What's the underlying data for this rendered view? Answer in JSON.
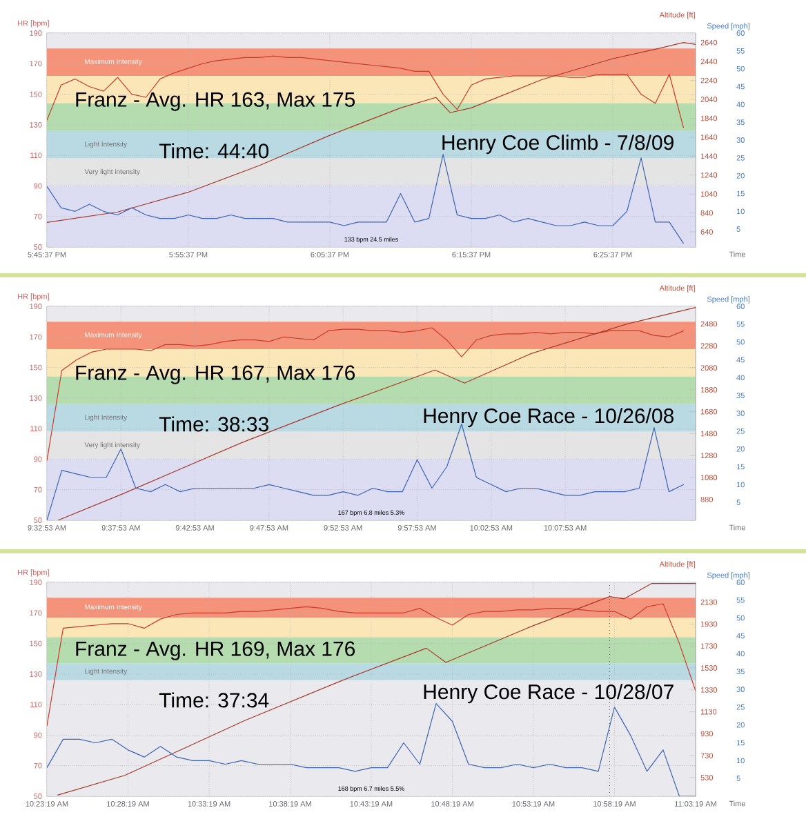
{
  "chart_data": [
    {
      "type": "line",
      "xlabel": "Time",
      "ylabel": "HR [bpm]",
      "y2label": "Altitude [ft]",
      "y3label": "Speed [mph]",
      "x": [
        17.7603,
        17.777,
        17.7936,
        17.8103,
        17.827,
        17.8436,
        17.8603,
        17.877,
        17.8936,
        17.9103,
        17.927,
        17.9436,
        17.9603,
        17.977,
        17.9936,
        18.0103,
        18.027,
        18.0436,
        18.0603,
        18.077,
        18.0936,
        18.1103,
        18.127,
        18.1436,
        18.1603,
        18.177,
        18.1936,
        18.2103,
        18.227,
        18.2436,
        18.2603,
        18.277,
        18.2936,
        18.3103,
        18.327,
        18.3436,
        18.3603,
        18.377,
        18.3936,
        18.4103,
        18.427,
        18.4436,
        18.4603,
        18.477,
        18.4936,
        18.5103
      ],
      "xlim": [
        17.7603,
        18.5245
      ],
      "xticks": [
        {
          "value": 17.7603,
          "label": "5:45:37 PM"
        },
        {
          "value": 17.9269,
          "label": "5:55:37 PM"
        },
        {
          "value": 18.0936,
          "label": "6:05:37 PM"
        },
        {
          "value": 18.2603,
          "label": "6:15:37 PM"
        },
        {
          "value": 18.4269,
          "label": "6:25:37 PM"
        }
      ],
      "ylim": [
        50,
        190
      ],
      "yticks": [
        50,
        70,
        90,
        110,
        130,
        150,
        170,
        190
      ],
      "y2lim": [
        480,
        2740
      ],
      "y2ticks": [
        640,
        840,
        1040,
        1240,
        1440,
        1640,
        1840,
        2040,
        2240,
        2440,
        2640
      ],
      "y3lim": [
        0,
        60
      ],
      "y3ticks": [
        5,
        10,
        15,
        20,
        25,
        30,
        35,
        40,
        45,
        50,
        55,
        60
      ],
      "grid": true,
      "line_style": "solid",
      "series": [
        {
          "color": "#c83c2c",
          "values": [
            133,
            156,
            160,
            155,
            152,
            161,
            150,
            148,
            160,
            164,
            167,
            170,
            172,
            173,
            174,
            174,
            175,
            174,
            174,
            173,
            172,
            171,
            170,
            169,
            168,
            167,
            165,
            165,
            150,
            140,
            156,
            160,
            161,
            162,
            162,
            162,
            162,
            161,
            161,
            163,
            163,
            163,
            150,
            144,
            163,
            128
          ]
        },
        {
          "axis": "y2",
          "color": "#a8382a",
          "x": [
            17.7603,
            17.8436,
            17.927,
            18.0103,
            18.0936,
            18.177,
            18.2186,
            18.2353,
            18.2603,
            18.3436,
            18.427,
            18.477,
            18.5103,
            18.5245
          ],
          "values": [
            740,
            850,
            1060,
            1340,
            1660,
            1950,
            2060,
            1900,
            1950,
            2250,
            2470,
            2570,
            2640,
            2620
          ]
        },
        {
          "axis": "y3",
          "color": "#3c64b4",
          "values": [
            17,
            11,
            10,
            12,
            10,
            9,
            11,
            9,
            8,
            8,
            9,
            8,
            8,
            9,
            8,
            8,
            8,
            7,
            7,
            7,
            7,
            6,
            7,
            7,
            7,
            15,
            7,
            8,
            26,
            9,
            8,
            8,
            9,
            7,
            8,
            7,
            6,
            6,
            7,
            6,
            6,
            10,
            25,
            7,
            7,
            1
          ]
        }
      ],
      "bands": [
        {
          "axis": "y",
          "from": 162,
          "to": 180,
          "color": "#f5937a",
          "label": "Maximum Intensity"
        },
        {
          "axis": "y",
          "from": 144,
          "to": 162,
          "color": "#fbe6b8"
        },
        {
          "axis": "y",
          "from": 126,
          "to": 144,
          "color": "#b5dcaf"
        },
        {
          "axis": "y",
          "from": 108,
          "to": 126,
          "color": "#b9d9e3",
          "label": "Light Intensity"
        },
        {
          "axis": "y",
          "from": 90,
          "to": 108,
          "color": "#e4e4e4",
          "label": "Very light intensity"
        },
        {
          "axis": "y",
          "from": 50,
          "to": 90,
          "color": "#dcdcf2"
        }
      ],
      "annotations": [
        "Franz - Avg. HR 163, Max 175",
        "Time: 44:40",
        "Henry Coe Climb - 7/8/09",
        "133 bpm 24.5 miles"
      ]
    },
    {
      "type": "line",
      "xlabel": "Time",
      "ylabel": "HR [bpm]",
      "y2label": "Altitude [ft]",
      "y3label": "Speed [mph]",
      "x": [
        9.5481,
        9.5648,
        9.5814,
        9.5981,
        9.6148,
        9.6314,
        9.6481,
        9.6648,
        9.6814,
        9.6981,
        9.7148,
        9.7314,
        9.7481,
        9.7648,
        9.7814,
        9.7981,
        9.8148,
        9.8314,
        9.8481,
        9.8648,
        9.8814,
        9.8981,
        9.9148,
        9.9314,
        9.9481,
        9.9648,
        9.9814,
        9.9981,
        10.0148,
        10.0314,
        10.0481,
        10.0648,
        10.0814,
        10.0981,
        10.1148,
        10.1314,
        10.1481,
        10.1648,
        10.1814,
        10.1981,
        10.2148,
        10.2314,
        10.2481,
        10.2648
      ],
      "xlim": [
        9.5481,
        10.2781
      ],
      "xticks": [
        {
          "value": 9.5481,
          "label": "9:32:53 AM"
        },
        {
          "value": 9.6314,
          "label": "9:37:53 AM"
        },
        {
          "value": 9.7147,
          "label": "9:42:53 AM"
        },
        {
          "value": 9.7981,
          "label": "9:47:53 AM"
        },
        {
          "value": 9.8814,
          "label": "9:52:53 AM"
        },
        {
          "value": 9.9647,
          "label": "9:57:53 AM"
        },
        {
          "value": 10.0481,
          "label": "10:02:53 AM"
        },
        {
          "value": 10.1314,
          "label": "10:07:53 AM"
        }
      ],
      "ylim": [
        50,
        190
      ],
      "yticks": [
        50,
        70,
        90,
        110,
        130,
        150,
        170,
        190
      ],
      "y2lim": [
        690,
        2640
      ],
      "y2ticks": [
        880,
        1080,
        1280,
        1480,
        1680,
        1880,
        2080,
        2280,
        2480
      ],
      "y3lim": [
        0,
        60
      ],
      "y3ticks": [
        5,
        10,
        15,
        20,
        25,
        30,
        35,
        40,
        45,
        50,
        55,
        60
      ],
      "grid": true,
      "line_style": "solid",
      "series": [
        {
          "color": "#c83c2c",
          "values": [
            89,
            148,
            155,
            160,
            162,
            162,
            162,
            161,
            165,
            165,
            164,
            165,
            167,
            168,
            168,
            167,
            170,
            169,
            168,
            174,
            175,
            175,
            174,
            174,
            173,
            174,
            176,
            168,
            157,
            168,
            171,
            172,
            172,
            173,
            172,
            173,
            173,
            172,
            174,
            174,
            174,
            171,
            170,
            174
          ]
        },
        {
          "axis": "y2",
          "color": "#a8382a",
          "x": [
            9.5606,
            9.6331,
            9.7681,
            9.8764,
            9.9848,
            10.0181,
            10.0931,
            10.2014,
            10.2781
          ],
          "values": [
            690,
            930,
            1400,
            1740,
            2060,
            1940,
            2210,
            2480,
            2630
          ]
        },
        {
          "axis": "y3",
          "color": "#3c64b4",
          "values": [
            0,
            14,
            13,
            12,
            12,
            20,
            9,
            8,
            10,
            8,
            9,
            9,
            9,
            9,
            9,
            10,
            9,
            8,
            7,
            7,
            8,
            7,
            9,
            8,
            8,
            17,
            9,
            15,
            27,
            12,
            10,
            8,
            9,
            9,
            8,
            7,
            7,
            8,
            8,
            8,
            9,
            26,
            8,
            10
          ]
        }
      ],
      "bands": [
        {
          "axis": "y",
          "from": 162,
          "to": 180,
          "color": "#f5937a",
          "label": "Maximum Intensity"
        },
        {
          "axis": "y",
          "from": 144,
          "to": 162,
          "color": "#fbe6b8"
        },
        {
          "axis": "y",
          "from": 126,
          "to": 144,
          "color": "#b5dcaf"
        },
        {
          "axis": "y",
          "from": 108,
          "to": 126,
          "color": "#b9d9e3",
          "label": "Light Intensity"
        },
        {
          "axis": "y",
          "from": 90,
          "to": 108,
          "color": "#e4e4e4",
          "label": "Very light intensity"
        },
        {
          "axis": "y",
          "from": 50,
          "to": 90,
          "color": "#dcdcf2"
        }
      ],
      "annotations": [
        "Franz - Avg. HR 167, Max 176",
        "Time: 38:33",
        "Henry Coe Race - 10/26/08",
        "167 bpm 6.8 miles 5.3%"
      ]
    },
    {
      "type": "line",
      "xlabel": "Time",
      "ylabel": "HR [bpm]",
      "y2label": "Altitude [ft]",
      "y3label": "Speed [mph]",
      "x": [
        10.3886,
        10.4053,
        10.4219,
        10.4386,
        10.4553,
        10.4719,
        10.4886,
        10.5053,
        10.5219,
        10.5386,
        10.5553,
        10.5719,
        10.5886,
        10.6053,
        10.6219,
        10.6386,
        10.6553,
        10.6719,
        10.6886,
        10.7053,
        10.7219,
        10.7386,
        10.7553,
        10.7719,
        10.7886,
        10.8053,
        10.8219,
        10.8386,
        10.8553,
        10.8719,
        10.8886,
        10.9053,
        10.9219,
        10.9386,
        10.9553,
        10.9719,
        10.9886,
        11.0053,
        11.0219,
        11.0386,
        11.0553
      ],
      "xlim": [
        10.3886,
        11.0553
      ],
      "xticks": [
        {
          "value": 10.3886,
          "label": "10:23:19 AM"
        },
        {
          "value": 10.4719,
          "label": "10:28:19 AM"
        },
        {
          "value": 10.5553,
          "label": "10:33:19 AM"
        },
        {
          "value": 10.6386,
          "label": "10:38:19 AM"
        },
        {
          "value": 10.7219,
          "label": "10:43:19 AM"
        },
        {
          "value": 10.8053,
          "label": "10:48:19 AM"
        },
        {
          "value": 10.8886,
          "label": "10:53:19 AM"
        },
        {
          "value": 10.9719,
          "label": "10:58:19 AM"
        },
        {
          "value": 11.0553,
          "label": "11:03:19 AM"
        }
      ],
      "ylim": [
        50,
        190
      ],
      "yticks": [
        50,
        70,
        90,
        110,
        130,
        150,
        170,
        190
      ],
      "y2lim": [
        360,
        2310
      ],
      "y2ticks": [
        530,
        730,
        930,
        1130,
        1330,
        1530,
        1730,
        1930,
        2130
      ],
      "y3lim": [
        0,
        60
      ],
      "y3ticks": [
        5,
        10,
        15,
        20,
        25,
        30,
        35,
        40,
        45,
        50,
        55,
        60
      ],
      "grid": true,
      "line_style": "solid",
      "series": [
        {
          "color": "#c83c2c",
          "values": [
            96,
            160,
            161,
            162,
            163,
            163,
            160,
            166,
            169,
            170,
            170,
            170,
            171,
            171,
            172,
            173,
            174,
            173,
            171,
            170,
            170,
            170,
            170,
            173,
            167,
            162,
            169,
            171,
            171,
            172,
            172,
            173,
            173,
            172,
            171,
            171,
            166,
            174,
            176,
            150,
            119
          ]
        },
        {
          "axis": "y2",
          "color": "#a8382a",
          "x": [
            10.3994,
            10.4686,
            10.5919,
            10.6903,
            10.7786,
            10.7986,
            10.8869,
            10.9669,
            10.9819,
            11.0103,
            11.0553
          ],
          "values": [
            370,
            550,
            1050,
            1410,
            1710,
            1580,
            1910,
            2180,
            2160,
            2300,
            2300
          ]
        },
        {
          "axis": "y3",
          "color": "#3c64b4",
          "values": [
            8,
            16,
            16,
            15,
            16,
            13,
            11,
            14,
            11,
            10,
            10,
            9,
            10,
            9,
            9,
            9,
            8,
            8,
            8,
            7,
            8,
            8,
            15,
            9,
            26,
            21,
            9,
            8,
            8,
            9,
            8,
            9,
            8,
            8,
            7,
            25,
            17,
            7,
            13,
            0,
            0
          ]
        }
      ],
      "bands": [
        {
          "axis": "y",
          "from": 167,
          "to": 180,
          "color": "#f5937a",
          "label": "Maximum Intensity"
        },
        {
          "axis": "y",
          "from": 154,
          "to": 167,
          "color": "#fbe6b8"
        },
        {
          "axis": "y",
          "from": 137,
          "to": 154,
          "color": "#b5dcaf"
        },
        {
          "axis": "y",
          "from": 126,
          "to": 137,
          "color": "#b9d9e3",
          "label": "Light Intensity"
        }
      ],
      "ref_lines": [
        {
          "axis": "x",
          "value": 10.9669,
          "line_style": "dotted"
        }
      ],
      "annotations": [
        "Franz - Avg. HR 169, Max 176",
        "Time: 37:34",
        "Henry Coe Race - 10/28/07",
        "168 bpm 6.7 miles 5.5%"
      ]
    }
  ]
}
